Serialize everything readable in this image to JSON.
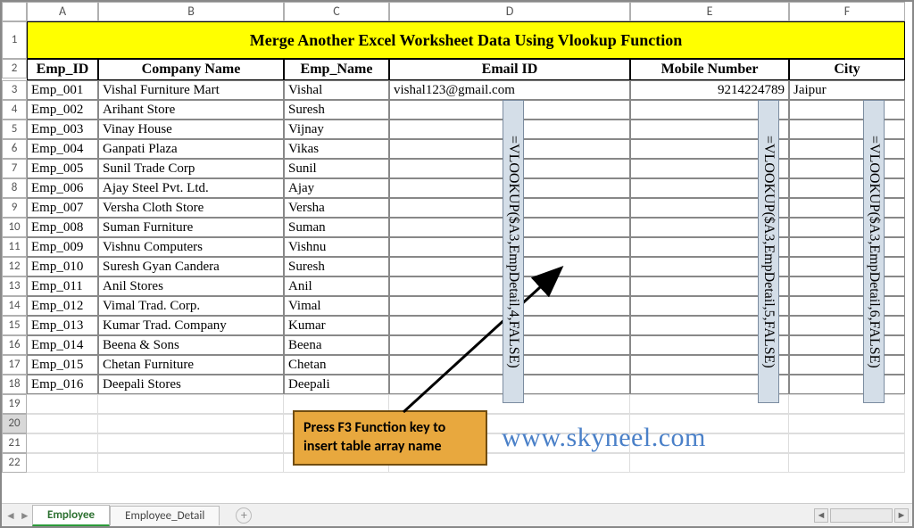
{
  "title": "Merge Another Excel Worksheet Data Using Vlookup Function",
  "col_letters": [
    "A",
    "B",
    "C",
    "D",
    "E",
    "F"
  ],
  "row_numbers": [
    "1",
    "2",
    "3",
    "4",
    "5",
    "6",
    "7",
    "8",
    "9",
    "10",
    "11",
    "12",
    "13",
    "14",
    "15",
    "16",
    "17",
    "18",
    "19",
    "20",
    "21",
    "22"
  ],
  "headers": [
    "Emp_ID",
    "Company Name",
    "Emp_Name",
    "Email ID",
    "Mobile Number",
    "City"
  ],
  "rows": [
    {
      "id": "Emp_001",
      "co": "Vishal Furniture Mart",
      "nm": "Vishal",
      "em": "vishal123@gmail.com",
      "mb": "9214224789",
      "ct": "Jaipur"
    },
    {
      "id": "Emp_002",
      "co": "Arihant Store",
      "nm": "Suresh",
      "em": "",
      "mb": "",
      "ct": ""
    },
    {
      "id": "Emp_003",
      "co": "Vinay House",
      "nm": "Vijnay",
      "em": "",
      "mb": "",
      "ct": ""
    },
    {
      "id": "Emp_004",
      "co": "Ganpati Plaza",
      "nm": "Vikas",
      "em": "",
      "mb": "",
      "ct": ""
    },
    {
      "id": "Emp_005",
      "co": "Sunil Trade Corp",
      "nm": "Sunil",
      "em": "",
      "mb": "",
      "ct": ""
    },
    {
      "id": "Emp_006",
      "co": "Ajay Steel Pvt. Ltd.",
      "nm": "Ajay",
      "em": "",
      "mb": "",
      "ct": ""
    },
    {
      "id": "Emp_007",
      "co": "Versha Cloth Store",
      "nm": "Versha",
      "em": "",
      "mb": "",
      "ct": ""
    },
    {
      "id": "Emp_008",
      "co": "Suman Furniture",
      "nm": "Suman",
      "em": "",
      "mb": "",
      "ct": ""
    },
    {
      "id": "Emp_009",
      "co": "Vishnu Computers",
      "nm": "Vishnu",
      "em": "",
      "mb": "",
      "ct": ""
    },
    {
      "id": "Emp_010",
      "co": "Suresh Gyan Candera",
      "nm": "Suresh",
      "em": "",
      "mb": "",
      "ct": ""
    },
    {
      "id": "Emp_011",
      "co": "Anil Stores",
      "nm": "Anil",
      "em": "",
      "mb": "",
      "ct": ""
    },
    {
      "id": "Emp_012",
      "co": "Vimal Trad. Corp.",
      "nm": "Vimal",
      "em": "",
      "mb": "",
      "ct": ""
    },
    {
      "id": "Emp_013",
      "co": "Kumar Trad. Company",
      "nm": "Kumar",
      "em": "",
      "mb": "",
      "ct": ""
    },
    {
      "id": "Emp_014",
      "co": "Beena & Sons",
      "nm": "Beena",
      "em": "",
      "mb": "",
      "ct": ""
    },
    {
      "id": "Emp_015",
      "co": "Chetan Furniture",
      "nm": "Chetan",
      "em": "",
      "mb": "",
      "ct": ""
    },
    {
      "id": "Emp_016",
      "co": "Deepali Stores",
      "nm": "Deepali",
      "em": "",
      "mb": "",
      "ct": ""
    }
  ],
  "callout": {
    "l1": "Press F3 Function key to",
    "l2": "insert table array name"
  },
  "formula_d": "=VLOOKUP($A3,EmpDetail,4,FALSE)",
  "formula_e": "=VLOOKUP($A3,EmpDetail,5,FALSE)",
  "formula_f": "=VLOOKUP($A3,EmpDetail,6,FALSE)",
  "watermark": "www.skyneel.com",
  "tabs": {
    "active": "Employee",
    "other": "Employee_Detail"
  },
  "styling": {
    "title_bg": "#ffff00",
    "border_color": "#888888",
    "callout_bg": "#e8a83e",
    "callout_border": "#704c10",
    "formula_bg": "#d4dee8",
    "formula_border": "#7b8ca0",
    "watermark_color": "#4a80c8",
    "tab_active_underline": "#2c9b3a"
  }
}
